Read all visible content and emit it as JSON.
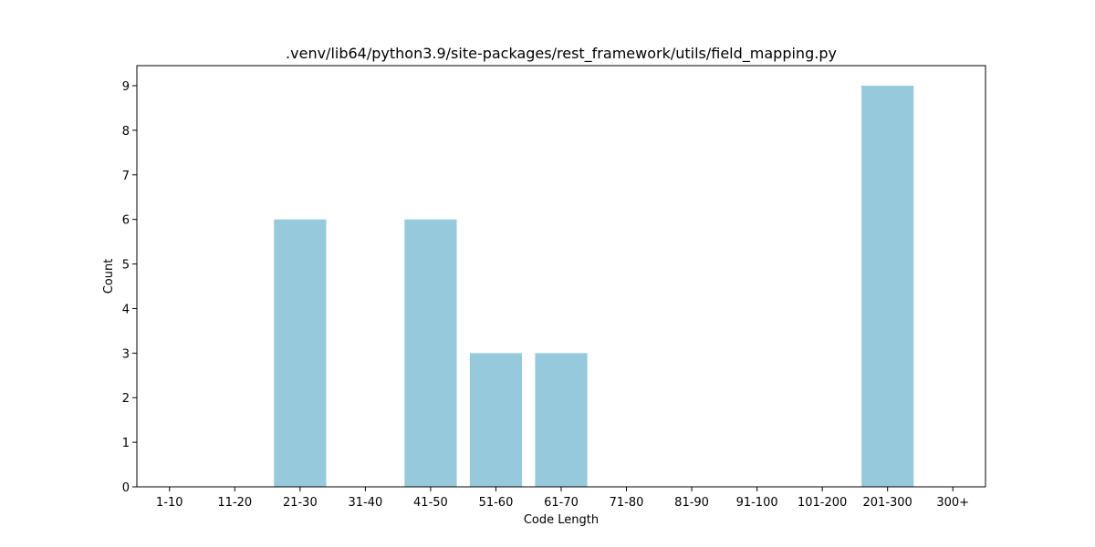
{
  "chart_data": {
    "type": "bar",
    "title": ".venv/lib64/python3.9/site-packages/rest_framework/utils/field_mapping.py",
    "xlabel": "Code Length",
    "ylabel": "Count",
    "categories": [
      "1-10",
      "11-20",
      "21-30",
      "31-40",
      "41-50",
      "51-60",
      "61-70",
      "71-80",
      "81-90",
      "91-100",
      "101-200",
      "201-300",
      "300+"
    ],
    "values": [
      0,
      0,
      6,
      0,
      6,
      3,
      3,
      0,
      0,
      0,
      0,
      9,
      0
    ],
    "ylim": [
      0,
      9.45
    ],
    "yticks": [
      0,
      1,
      2,
      3,
      4,
      5,
      6,
      7,
      8,
      9
    ],
    "bar_color": "#96c9dc",
    "grid": false,
    "legend": "none"
  }
}
